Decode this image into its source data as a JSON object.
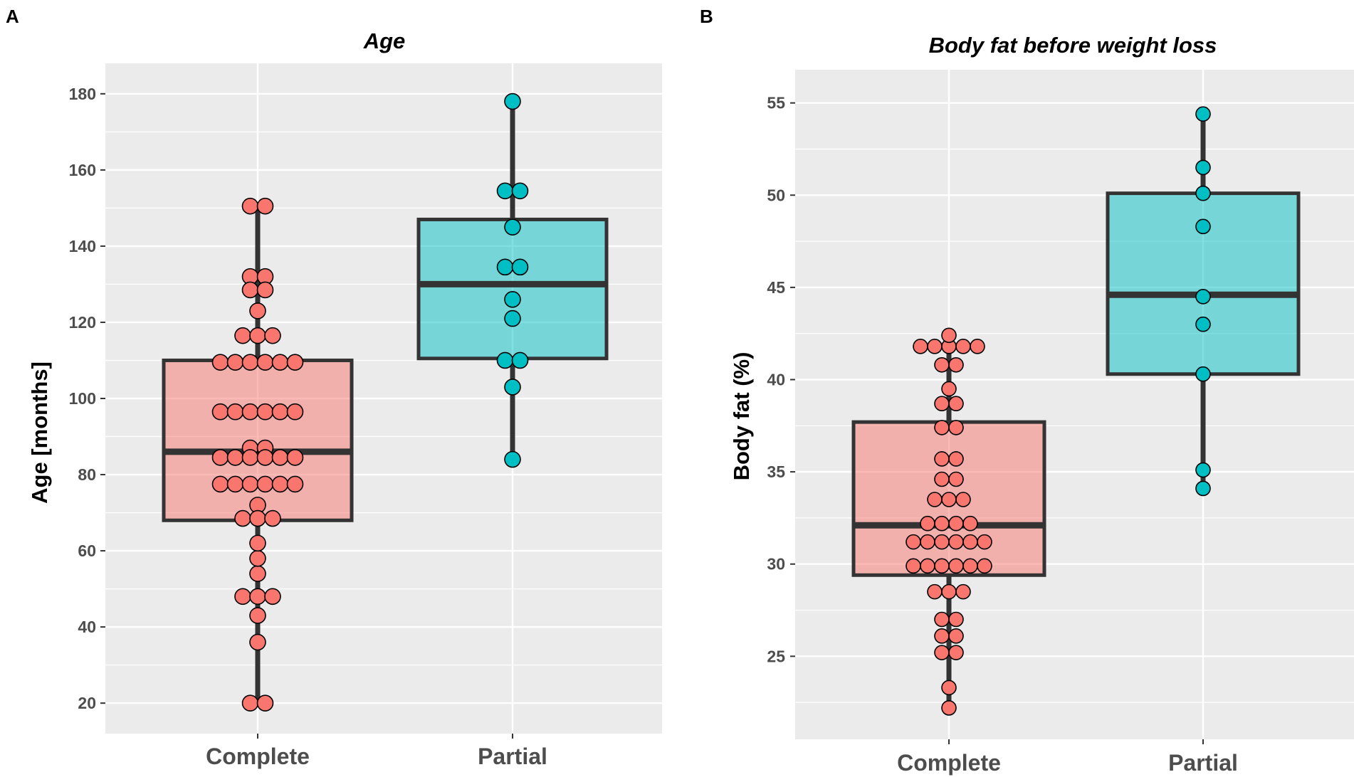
{
  "figure": {
    "colors": {
      "complete_fill": "#F8766D",
      "partial_fill": "#00BFC4",
      "box_stroke": "#333333",
      "panel_bg": "#EBEBEB",
      "grid": "#FFFFFF"
    }
  },
  "chart_data": [
    {
      "panel_label": "A",
      "type": "boxplot",
      "title": "Age",
      "ylabel": "Age [months]",
      "xlabel": "",
      "categories": [
        "Complete",
        "Partial"
      ],
      "ylim": [
        12,
        188
      ],
      "yticks": [
        20,
        40,
        60,
        80,
        100,
        120,
        140,
        160,
        180
      ],
      "boxes": [
        {
          "name": "Complete",
          "min": 20,
          "q1": 68,
          "median": 86,
          "q3": 110,
          "max": 151
        },
        {
          "name": "Partial",
          "min": 84,
          "q1": 110.5,
          "median": 130,
          "q3": 147,
          "max": 178
        }
      ],
      "points": [
        {
          "group": "Complete",
          "values": [
            20,
            20,
            36,
            43,
            48,
            48,
            48,
            54,
            58,
            62,
            68.5,
            68.5,
            68.5,
            72,
            77.5,
            77.5,
            77.5,
            77.5,
            77.5,
            77.5,
            84.5,
            84.5,
            84.5,
            84.5,
            84.5,
            84.5,
            87,
            87,
            96.5,
            96.5,
            96.5,
            96.5,
            96.5,
            96.5,
            109.5,
            109.5,
            109.5,
            109.5,
            109.5,
            109.5,
            116.5,
            116.5,
            116.5,
            123,
            128.5,
            128.5,
            132,
            132,
            150.5,
            150.5
          ]
        },
        {
          "group": "Partial",
          "values": [
            84,
            103,
            110,
            110,
            121,
            126,
            134.5,
            134.5,
            145,
            154.5,
            154.5,
            178
          ]
        }
      ]
    },
    {
      "panel_label": "B",
      "type": "boxplot",
      "title": "Body fat before weight loss",
      "ylabel": "Body fat (%)",
      "xlabel": "",
      "categories": [
        "Complete",
        "Partial"
      ],
      "ylim": [
        20.5,
        56.8
      ],
      "yticks": [
        25,
        30,
        35,
        40,
        45,
        50,
        55
      ],
      "boxes": [
        {
          "name": "Complete",
          "min": 22.2,
          "q1": 29.4,
          "median": 32.1,
          "q3": 37.7,
          "max": 42.4
        },
        {
          "name": "Partial",
          "min": 34.1,
          "q1": 40.3,
          "median": 44.6,
          "q3": 50.1,
          "max": 54.4
        }
      ],
      "points": [
        {
          "group": "Complete",
          "values": [
            22.2,
            23.3,
            25.2,
            25.2,
            26.1,
            26.1,
            27.0,
            27.0,
            28.5,
            28.5,
            28.5,
            29.9,
            29.9,
            29.9,
            29.9,
            29.9,
            29.9,
            31.2,
            31.2,
            31.2,
            31.2,
            31.2,
            31.2,
            32.2,
            32.2,
            32.2,
            32.2,
            33.5,
            33.5,
            33.5,
            34.6,
            34.6,
            35.7,
            35.7,
            37.4,
            37.4,
            38.7,
            38.7,
            39.5,
            40.8,
            40.8,
            41.8,
            41.8,
            41.8,
            41.8,
            41.8,
            42.4
          ]
        },
        {
          "group": "Partial",
          "values": [
            34.1,
            35.1,
            40.3,
            43.0,
            44.5,
            48.3,
            50.1,
            51.5,
            54.4
          ]
        }
      ]
    }
  ]
}
